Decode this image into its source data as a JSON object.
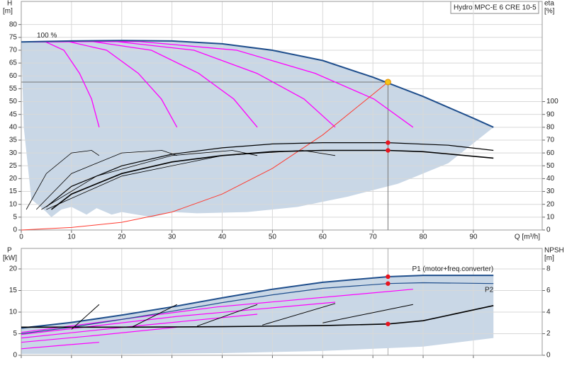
{
  "title": "Hydro MPC-E 6 CRE 10-5",
  "chart_data": [
    {
      "type": "line",
      "y_label": [
        "H",
        "[m]"
      ],
      "y2_label": [
        "eta",
        "[%]"
      ],
      "x_label": "Q [m³/h]",
      "annotation": "100 %",
      "xlim": [
        0,
        103.7
      ],
      "xticks": [
        0,
        10,
        20,
        30,
        40,
        50,
        60,
        70,
        80,
        90
      ],
      "ylim": [
        0,
        89
      ],
      "yticks": [
        0,
        5,
        10,
        15,
        20,
        25,
        30,
        35,
        40,
        45,
        50,
        55,
        60,
        65,
        70,
        75,
        80
      ],
      "y2lim": [
        0,
        178
      ],
      "y2ticks": [
        0,
        10,
        20,
        30,
        40,
        50,
        60,
        70,
        80,
        90,
        100
      ],
      "grid": true,
      "range_area": {
        "color": "#c9d7e6",
        "x": [
          0,
          10,
          20,
          30,
          40,
          50,
          60,
          70,
          80,
          90,
          94,
          85,
          75,
          65,
          55,
          45,
          35,
          30,
          26,
          20,
          18,
          15,
          13,
          10,
          8,
          6,
          5,
          2,
          0.5
        ],
        "values": [
          73.2,
          73.6,
          73.8,
          73.6,
          72.5,
          70,
          66,
          59.5,
          52,
          43.5,
          40,
          26,
          18,
          13,
          9,
          7,
          6.5,
          7,
          5,
          7,
          6,
          8.5,
          6,
          9,
          8,
          5,
          7,
          12,
          40
        ]
      },
      "series": [
        {
          "color": "#ff00ff",
          "width": 1.3,
          "axis": "y",
          "x": [
            0,
            4.7,
            8.5,
            11.6,
            14,
            15.5
          ],
          "values": [
            73.2,
            73.4,
            70,
            61,
            51,
            40
          ]
        },
        {
          "color": "#ff00ff",
          "width": 1.3,
          "axis": "y",
          "x": [
            0,
            9.3,
            17,
            23.3,
            27.9,
            31
          ],
          "values": [
            73.2,
            73.4,
            70,
            61,
            51,
            40
          ]
        },
        {
          "color": "#ff00ff",
          "width": 1.3,
          "axis": "y",
          "x": [
            0,
            14.1,
            25.9,
            35.3,
            42.3,
            47
          ],
          "values": [
            73.2,
            73.4,
            70,
            61,
            51,
            40
          ]
        },
        {
          "color": "#ff00ff",
          "width": 1.3,
          "axis": "y",
          "x": [
            0,
            18.8,
            34.4,
            46.9,
            56.3,
            62.5
          ],
          "values": [
            73.2,
            73.4,
            70,
            61,
            51,
            40
          ]
        },
        {
          "color": "#ff00ff",
          "width": 1.3,
          "axis": "y",
          "x": [
            0,
            23.4,
            42.9,
            58.5,
            70.2,
            78
          ],
          "values": [
            73.2,
            73.4,
            70,
            61,
            51,
            40
          ]
        },
        {
          "color": "#1f4e8c",
          "width": 2,
          "axis": "y",
          "x": [
            0,
            10,
            20,
            30,
            40,
            50,
            60,
            70,
            80,
            90,
            94
          ],
          "values": [
            73.2,
            73.6,
            73.8,
            73.6,
            72.5,
            70,
            66,
            59.5,
            52,
            43.5,
            40
          ]
        },
        {
          "color": "#ff3b30",
          "width": 1,
          "axis": "y",
          "x": [
            0,
            10,
            20,
            30,
            40,
            50,
            60,
            73
          ],
          "values": [
            0,
            1,
            3,
            7,
            14,
            24,
            37,
            57.6
          ]
        },
        {
          "color": "#000000",
          "width": 0.8,
          "axis": "y2",
          "x": [
            1,
            5,
            10,
            14,
            15.5
          ],
          "values": [
            16,
            44,
            60,
            62,
            58
          ]
        },
        {
          "color": "#000000",
          "width": 0.8,
          "axis": "y2",
          "x": [
            3,
            10,
            20,
            28,
            31
          ],
          "values": [
            16,
            44,
            60,
            62,
            58
          ]
        },
        {
          "color": "#000000",
          "width": 0.8,
          "axis": "y2",
          "x": [
            4,
            15,
            30,
            42,
            47
          ],
          "values": [
            16,
            42,
            58,
            62,
            58
          ]
        },
        {
          "color": "#000000",
          "width": 0.8,
          "axis": "y2",
          "x": [
            5,
            20,
            40,
            56,
            62.5
          ],
          "values": [
            16,
            42,
            58,
            62,
            58
          ]
        },
        {
          "color": "#000000",
          "width": 1.2,
          "axis": "y2",
          "x": [
            5,
            10,
            20,
            30,
            40,
            50,
            60,
            73,
            85,
            94
          ],
          "values": [
            18,
            34,
            50,
            59,
            64,
            67,
            68,
            68,
            66,
            62
          ]
        },
        {
          "color": "#000000",
          "width": 1.6,
          "axis": "y2",
          "x": [
            6,
            10,
            20,
            30,
            40,
            50,
            60,
            73,
            80,
            94
          ],
          "values": [
            16,
            28,
            44,
            53,
            58,
            61,
            62,
            62,
            61,
            56
          ]
        }
      ],
      "points": [
        {
          "x": 73,
          "value": 57.6,
          "axis": "y",
          "color": "#f5c518",
          "guides": true
        },
        {
          "x": 73,
          "value": 68,
          "axis": "y2",
          "color": "#e8141e"
        },
        {
          "x": 73,
          "value": 62,
          "axis": "y2",
          "color": "#e8141e"
        }
      ]
    },
    {
      "type": "line",
      "y_label": [
        "P",
        "[kW]"
      ],
      "y2_label": [
        "NPSH",
        "[m]"
      ],
      "xlim": [
        0,
        103.7
      ],
      "ylim": [
        0,
        24.75
      ],
      "yticks": [
        0,
        5,
        10,
        15,
        20
      ],
      "y2lim": [
        0,
        9.9
      ],
      "y2ticks": [
        0,
        2,
        4,
        6,
        8
      ],
      "grid": true,
      "range_area": {
        "color": "#c9d7e6",
        "x": [
          0,
          10,
          20,
          30,
          40,
          50,
          60,
          73,
          80,
          94,
          94,
          80,
          60,
          40,
          20,
          0
        ],
        "values": [
          6.3,
          7.6,
          9.3,
          11.2,
          13.3,
          15.3,
          16.9,
          18.2,
          18.5,
          18.5,
          4,
          2,
          1,
          0.5,
          0.3,
          0.3
        ]
      },
      "series": [
        {
          "color": "#ff00ff",
          "width": 1.2,
          "axis": "y",
          "x": [
            0,
            8,
            15.5
          ],
          "values": [
            1.5,
            2.3,
            3
          ]
        },
        {
          "color": "#ff00ff",
          "width": 1.2,
          "axis": "y",
          "x": [
            0,
            15,
            31
          ],
          "values": [
            3,
            4.6,
            6.5
          ]
        },
        {
          "color": "#ff00ff",
          "width": 1.2,
          "axis": "y",
          "x": [
            0,
            23,
            47
          ],
          "values": [
            4,
            6.8,
            9.5
          ]
        },
        {
          "color": "#ff00ff",
          "width": 1.2,
          "axis": "y",
          "x": [
            0,
            31,
            62.5
          ],
          "values": [
            4.8,
            9,
            12.3
          ]
        },
        {
          "color": "#ff00ff",
          "width": 1.2,
          "axis": "y",
          "x": [
            0,
            39,
            78
          ],
          "values": [
            5.3,
            11.2,
            15.3
          ]
        },
        {
          "color": "#1f4e8c",
          "width": 1.2,
          "axis": "y",
          "x": [
            0,
            10,
            20,
            30,
            40,
            50,
            60,
            73,
            80,
            94
          ],
          "values": [
            5,
            6.5,
            8.3,
            10.2,
            12.2,
            14,
            15.5,
            16.6,
            16.8,
            16.6
          ],
          "name": "P2",
          "label_pos": "below"
        },
        {
          "color": "#1f4e8c",
          "width": 2,
          "axis": "y",
          "x": [
            0,
            10,
            20,
            30,
            40,
            50,
            60,
            73,
            80,
            94
          ],
          "values": [
            6.3,
            7.6,
            9.3,
            11.2,
            13.3,
            15.3,
            16.9,
            18.2,
            18.5,
            18.5
          ],
          "name": "P1 (motor+freq.converter)",
          "label_pos": "above"
        },
        {
          "color": "#000000",
          "width": 1,
          "axis": "y2",
          "x": [
            10,
            15.5
          ],
          "values": [
            2.4,
            4.7
          ]
        },
        {
          "color": "#000000",
          "width": 1,
          "axis": "y2",
          "x": [
            22,
            31
          ],
          "values": [
            2.6,
            4.7
          ]
        },
        {
          "color": "#000000",
          "width": 1,
          "axis": "y2",
          "x": [
            35,
            47
          ],
          "values": [
            2.7,
            4.7
          ]
        },
        {
          "color": "#000000",
          "width": 1,
          "axis": "y2",
          "x": [
            48,
            62.5
          ],
          "values": [
            2.8,
            4.8
          ]
        },
        {
          "color": "#000000",
          "width": 1,
          "axis": "y2",
          "x": [
            60,
            78
          ],
          "values": [
            3,
            4.7
          ]
        },
        {
          "color": "#000000",
          "width": 1.6,
          "axis": "y2",
          "x": [
            0,
            10,
            20,
            40,
            60,
            73,
            80,
            94
          ],
          "values": [
            2.6,
            2.6,
            2.6,
            2.65,
            2.75,
            2.9,
            3.2,
            4.6
          ]
        }
      ],
      "points": [
        {
          "x": 73,
          "value": 18.2,
          "axis": "y",
          "color": "#e8141e"
        },
        {
          "x": 73,
          "value": 16.6,
          "axis": "y",
          "color": "#e8141e"
        },
        {
          "x": 73,
          "value": 2.9,
          "axis": "y2",
          "color": "#e8141e"
        }
      ]
    }
  ]
}
